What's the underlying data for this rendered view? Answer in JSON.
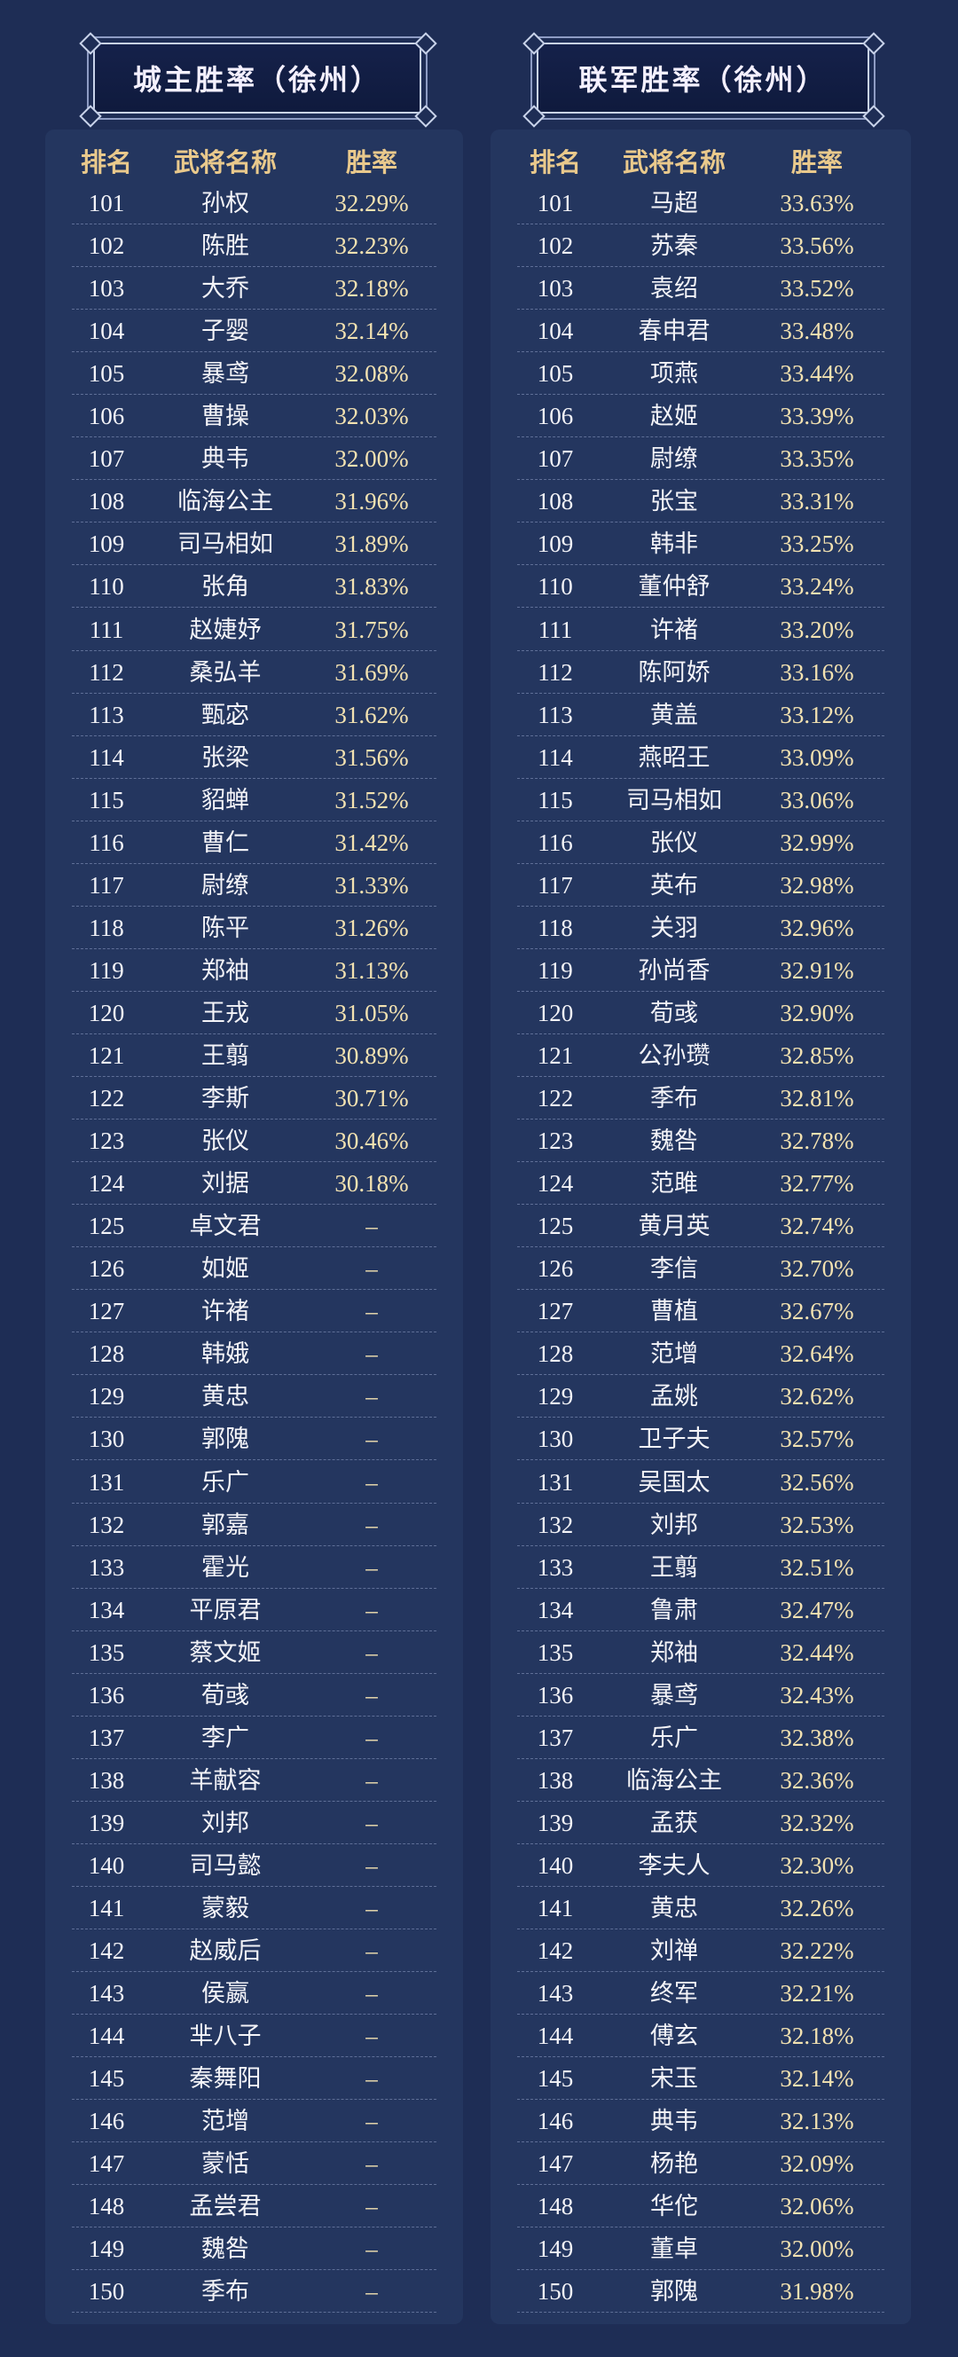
{
  "tables": [
    {
      "title": "城主胜率（徐州）",
      "headers": [
        "排名",
        "武将名称",
        "胜率"
      ],
      "rows": [
        [
          "101",
          "孙权",
          "32.29%"
        ],
        [
          "102",
          "陈胜",
          "32.23%"
        ],
        [
          "103",
          "大乔",
          "32.18%"
        ],
        [
          "104",
          "子婴",
          "32.14%"
        ],
        [
          "105",
          "暴鸢",
          "32.08%"
        ],
        [
          "106",
          "曹操",
          "32.03%"
        ],
        [
          "107",
          "典韦",
          "32.00%"
        ],
        [
          "108",
          "临海公主",
          "31.96%"
        ],
        [
          "109",
          "司马相如",
          "31.89%"
        ],
        [
          "110",
          "张角",
          "31.83%"
        ],
        [
          "111",
          "赵婕妤",
          "31.75%"
        ],
        [
          "112",
          "桑弘羊",
          "31.69%"
        ],
        [
          "113",
          "甄宓",
          "31.62%"
        ],
        [
          "114",
          "张梁",
          "31.56%"
        ],
        [
          "115",
          "貂蝉",
          "31.52%"
        ],
        [
          "116",
          "曹仁",
          "31.42%"
        ],
        [
          "117",
          "尉缭",
          "31.33%"
        ],
        [
          "118",
          "陈平",
          "31.26%"
        ],
        [
          "119",
          "郑袖",
          "31.13%"
        ],
        [
          "120",
          "王戎",
          "31.05%"
        ],
        [
          "121",
          "王翦",
          "30.89%"
        ],
        [
          "122",
          "李斯",
          "30.71%"
        ],
        [
          "123",
          "张仪",
          "30.46%"
        ],
        [
          "124",
          "刘据",
          "30.18%"
        ],
        [
          "125",
          "卓文君",
          "–"
        ],
        [
          "126",
          "如姬",
          "–"
        ],
        [
          "127",
          "许褚",
          "–"
        ],
        [
          "128",
          "韩娥",
          "–"
        ],
        [
          "129",
          "黄忠",
          "–"
        ],
        [
          "130",
          "郭隗",
          "–"
        ],
        [
          "131",
          "乐广",
          "–"
        ],
        [
          "132",
          "郭嘉",
          "–"
        ],
        [
          "133",
          "霍光",
          "–"
        ],
        [
          "134",
          "平原君",
          "–"
        ],
        [
          "135",
          "蔡文姬",
          "–"
        ],
        [
          "136",
          "荀彧",
          "–"
        ],
        [
          "137",
          "李广",
          "–"
        ],
        [
          "138",
          "羊献容",
          "–"
        ],
        [
          "139",
          "刘邦",
          "–"
        ],
        [
          "140",
          "司马懿",
          "–"
        ],
        [
          "141",
          "蒙毅",
          "–"
        ],
        [
          "142",
          "赵威后",
          "–"
        ],
        [
          "143",
          "侯嬴",
          "–"
        ],
        [
          "144",
          "芈八子",
          "–"
        ],
        [
          "145",
          "秦舞阳",
          "–"
        ],
        [
          "146",
          "范增",
          "–"
        ],
        [
          "147",
          "蒙恬",
          "–"
        ],
        [
          "148",
          "孟尝君",
          "–"
        ],
        [
          "149",
          "魏咎",
          "–"
        ],
        [
          "150",
          "季布",
          "–"
        ]
      ]
    },
    {
      "title": "联军胜率（徐州）",
      "headers": [
        "排名",
        "武将名称",
        "胜率"
      ],
      "rows": [
        [
          "101",
          "马超",
          "33.63%"
        ],
        [
          "102",
          "苏秦",
          "33.56%"
        ],
        [
          "103",
          "袁绍",
          "33.52%"
        ],
        [
          "104",
          "春申君",
          "33.48%"
        ],
        [
          "105",
          "项燕",
          "33.44%"
        ],
        [
          "106",
          "赵姬",
          "33.39%"
        ],
        [
          "107",
          "尉缭",
          "33.35%"
        ],
        [
          "108",
          "张宝",
          "33.31%"
        ],
        [
          "109",
          "韩非",
          "33.25%"
        ],
        [
          "110",
          "董仲舒",
          "33.24%"
        ],
        [
          "111",
          "许褚",
          "33.20%"
        ],
        [
          "112",
          "陈阿娇",
          "33.16%"
        ],
        [
          "113",
          "黄盖",
          "33.12%"
        ],
        [
          "114",
          "燕昭王",
          "33.09%"
        ],
        [
          "115",
          "司马相如",
          "33.06%"
        ],
        [
          "116",
          "张仪",
          "32.99%"
        ],
        [
          "117",
          "英布",
          "32.98%"
        ],
        [
          "118",
          "关羽",
          "32.96%"
        ],
        [
          "119",
          "孙尚香",
          "32.91%"
        ],
        [
          "120",
          "荀彧",
          "32.90%"
        ],
        [
          "121",
          "公孙瓒",
          "32.85%"
        ],
        [
          "122",
          "季布",
          "32.81%"
        ],
        [
          "123",
          "魏咎",
          "32.78%"
        ],
        [
          "124",
          "范雎",
          "32.77%"
        ],
        [
          "125",
          "黄月英",
          "32.74%"
        ],
        [
          "126",
          "李信",
          "32.70%"
        ],
        [
          "127",
          "曹植",
          "32.67%"
        ],
        [
          "128",
          "范增",
          "32.64%"
        ],
        [
          "129",
          "孟姚",
          "32.62%"
        ],
        [
          "130",
          "卫子夫",
          "32.57%"
        ],
        [
          "131",
          "吴国太",
          "32.56%"
        ],
        [
          "132",
          "刘邦",
          "32.53%"
        ],
        [
          "133",
          "王翦",
          "32.51%"
        ],
        [
          "134",
          "鲁肃",
          "32.47%"
        ],
        [
          "135",
          "郑袖",
          "32.44%"
        ],
        [
          "136",
          "暴鸢",
          "32.43%"
        ],
        [
          "137",
          "乐广",
          "32.38%"
        ],
        [
          "138",
          "临海公主",
          "32.36%"
        ],
        [
          "139",
          "孟获",
          "32.32%"
        ],
        [
          "140",
          "李夫人",
          "32.30%"
        ],
        [
          "141",
          "黄忠",
          "32.26%"
        ],
        [
          "142",
          "刘禅",
          "32.22%"
        ],
        [
          "143",
          "终军",
          "32.21%"
        ],
        [
          "144",
          "傅玄",
          "32.18%"
        ],
        [
          "145",
          "宋玉",
          "32.14%"
        ],
        [
          "146",
          "典韦",
          "32.13%"
        ],
        [
          "147",
          "杨艳",
          "32.09%"
        ],
        [
          "148",
          "华佗",
          "32.06%"
        ],
        [
          "149",
          "董卓",
          "32.00%"
        ],
        [
          "150",
          "郭隗",
          "31.98%"
        ]
      ]
    }
  ]
}
